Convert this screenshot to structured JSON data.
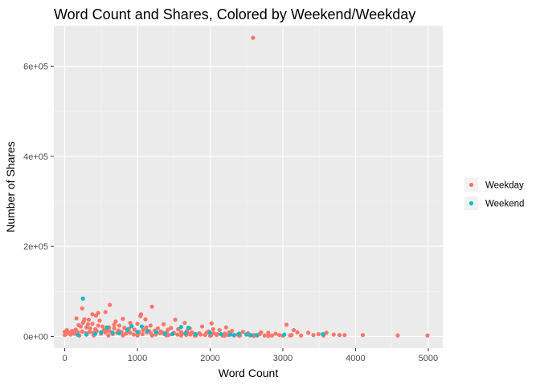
{
  "chart_data": {
    "type": "scatter",
    "title": "Word Count and Shares, Colored by Weekend/Weekday",
    "xlabel": "Word Count",
    "ylabel": "Number of Shares",
    "xlim": [
      -150,
      5200
    ],
    "ylim": [
      -26000,
      690000
    ],
    "x_ticks": [
      0,
      1000,
      2000,
      3000,
      4000,
      5000
    ],
    "x_tick_labels": [
      "0",
      "1000",
      "2000",
      "3000",
      "4000",
      "5000"
    ],
    "y_ticks": [
      0,
      200000,
      400000,
      600000
    ],
    "y_tick_labels": [
      "0e+00",
      "2e+05",
      "4e+05",
      "6e+05"
    ],
    "grid": true,
    "legend_position": "right",
    "series": [
      {
        "name": "Weekday",
        "color": "#F8766D",
        "points": [
          [
            2590,
            663000
          ],
          [
            620,
            70000
          ],
          [
            1200,
            66000
          ],
          [
            240,
            62000
          ],
          [
            460,
            52000
          ],
          [
            560,
            54000
          ],
          [
            380,
            49000
          ],
          [
            1050,
            49000
          ],
          [
            430,
            46000
          ],
          [
            1040,
            45000
          ],
          [
            160,
            40000
          ],
          [
            270,
            38000
          ],
          [
            330,
            37000
          ],
          [
            800,
            39000
          ],
          [
            1110,
            38000
          ],
          [
            1520,
            37000
          ],
          [
            480,
            35000
          ],
          [
            700,
            33000
          ],
          [
            260,
            33000
          ],
          [
            900,
            30000
          ],
          [
            1000,
            28000
          ],
          [
            1360,
            27000
          ],
          [
            2020,
            29000
          ],
          [
            1650,
            30000
          ],
          [
            1890,
            22000
          ],
          [
            2220,
            20000
          ],
          [
            190,
            25000
          ],
          [
            520,
            22000
          ],
          [
            610,
            20000
          ],
          [
            750,
            24000
          ],
          [
            1120,
            20000
          ],
          [
            1280,
            18000
          ],
          [
            1460,
            19000
          ],
          [
            1560,
            16000
          ],
          [
            1720,
            18000
          ],
          [
            2040,
            16000
          ],
          [
            2130,
            14000
          ],
          [
            2300,
            12000
          ],
          [
            2450,
            10000
          ],
          [
            2700,
            9000
          ],
          [
            2800,
            8000
          ],
          [
            2900,
            6000
          ],
          [
            3050,
            26000
          ],
          [
            3150,
            14000
          ],
          [
            3200,
            9000
          ],
          [
            3350,
            8000
          ],
          [
            3490,
            5000
          ],
          [
            3600,
            8000
          ],
          [
            3700,
            4000
          ],
          [
            3780,
            3000
          ],
          [
            3850,
            3000
          ],
          [
            4100,
            3000
          ],
          [
            4580,
            2000
          ],
          [
            4990,
            2000
          ],
          [
            3100,
            2000
          ],
          [
            2950,
            3000
          ],
          [
            2600,
            3000
          ],
          [
            2500,
            5000
          ],
          [
            2380,
            4000
          ],
          [
            2200,
            6000
          ],
          [
            2100,
            5000
          ],
          [
            1950,
            8000
          ],
          [
            1850,
            7000
          ],
          [
            1750,
            9000
          ],
          [
            1600,
            10000
          ],
          [
            1500,
            8000
          ],
          [
            1400,
            9000
          ],
          [
            1320,
            11000
          ],
          [
            1240,
            13000
          ],
          [
            1160,
            12000
          ],
          [
            1080,
            14000
          ],
          [
            960,
            15000
          ],
          [
            880,
            17000
          ],
          [
            820,
            19000
          ],
          [
            680,
            18000
          ],
          [
            590,
            16000
          ],
          [
            540,
            14000
          ],
          [
            420,
            16000
          ],
          [
            350,
            18000
          ],
          [
            300,
            20000
          ],
          [
            220,
            22000
          ],
          [
            150,
            15000
          ],
          [
            100,
            12000
          ],
          [
            60,
            8000
          ],
          [
            20,
            5000
          ],
          [
            0,
            3000
          ],
          [
            0,
            10000
          ],
          [
            30,
            14000
          ],
          [
            80,
            4000
          ],
          [
            130,
            6000
          ],
          [
            180,
            9000
          ],
          [
            240,
            11000
          ],
          [
            290,
            7000
          ],
          [
            340,
            10000
          ],
          [
            390,
            8000
          ],
          [
            440,
            12000
          ],
          [
            500,
            6000
          ],
          [
            560,
            9000
          ],
          [
            620,
            11000
          ],
          [
            660,
            5000
          ],
          [
            720,
            8000
          ],
          [
            780,
            10000
          ],
          [
            840,
            6000
          ],
          [
            900,
            8000
          ],
          [
            950,
            4000
          ],
          [
            1010,
            7000
          ],
          [
            1070,
            5000
          ],
          [
            1130,
            9000
          ],
          [
            1190,
            6000
          ],
          [
            1250,
            4000
          ],
          [
            1310,
            7000
          ],
          [
            1370,
            5000
          ],
          [
            1430,
            3000
          ],
          [
            1490,
            6000
          ],
          [
            1550,
            4000
          ],
          [
            1610,
            5000
          ],
          [
            1670,
            3000
          ],
          [
            1730,
            4000
          ],
          [
            1790,
            2000
          ],
          [
            1870,
            4000
          ],
          [
            1930,
            3000
          ],
          [
            2010,
            2000
          ],
          [
            2090,
            3000
          ],
          [
            2170,
            2000
          ],
          [
            2250,
            3000
          ],
          [
            2330,
            2000
          ],
          [
            2410,
            2000
          ],
          [
            2550,
            2000
          ],
          [
            2650,
            2000
          ],
          [
            2750,
            2000
          ],
          [
            2850,
            2000
          ],
          [
            3000,
            1500
          ],
          [
            3120,
            3000
          ],
          [
            3250,
            2000
          ],
          [
            3420,
            3000
          ],
          [
            3560,
            2000
          ],
          [
            200,
            2000
          ],
          [
            400,
            2000
          ],
          [
            600,
            2000
          ],
          [
            800,
            2000
          ],
          [
            1000,
            2000
          ],
          [
            1200,
            2000
          ],
          [
            1400,
            2000
          ],
          [
            1600,
            2000
          ],
          [
            1800,
            1500
          ],
          [
            2000,
            1500
          ],
          [
            2200,
            1500
          ],
          [
            2400,
            1500
          ],
          [
            2600,
            1200
          ],
          [
            2800,
            1200
          ],
          [
            320,
            27000
          ],
          [
            460,
            24000
          ],
          [
            680,
            26000
          ],
          [
            920,
            22000
          ],
          [
            1180,
            24000
          ],
          [
            1420,
            15000
          ],
          [
            1680,
            12000
          ],
          [
            1980,
            11000
          ],
          [
            2260,
            9000
          ],
          [
            2520,
            7000
          ],
          [
            2680,
            5000
          ],
          [
            250,
            30000
          ],
          [
            380,
            28000
          ],
          [
            740,
            13000
          ],
          [
            860,
            11000
          ],
          [
            1020,
            10000
          ],
          [
            1350,
            8000
          ],
          [
            1700,
            6000
          ],
          [
            2050,
            7000
          ]
        ]
      },
      {
        "name": "Weekend",
        "color": "#00BFC4",
        "points": [
          [
            250,
            84000
          ],
          [
            580,
            20000
          ],
          [
            920,
            23000
          ],
          [
            1060,
            22000
          ],
          [
            750,
            7000
          ],
          [
            860,
            15000
          ],
          [
            1000,
            10000
          ],
          [
            1140,
            12000
          ],
          [
            1260,
            9000
          ],
          [
            1600,
            21000
          ],
          [
            1700,
            19000
          ],
          [
            1660,
            7000
          ],
          [
            1800,
            5000
          ],
          [
            2000,
            8000
          ],
          [
            2150,
            5000
          ],
          [
            2280,
            4000
          ],
          [
            2330,
            3000
          ],
          [
            2400,
            6000
          ],
          [
            2500,
            4000
          ],
          [
            2560,
            3000
          ],
          [
            3020,
            4000
          ],
          [
            3550,
            5000
          ],
          [
            500,
            9000
          ],
          [
            660,
            8000
          ],
          [
            420,
            6000
          ],
          [
            300,
            4000
          ],
          [
            180,
            3000
          ],
          [
            1380,
            6000
          ],
          [
            1480,
            5000
          ],
          [
            2640,
            3000
          ]
        ]
      }
    ]
  }
}
